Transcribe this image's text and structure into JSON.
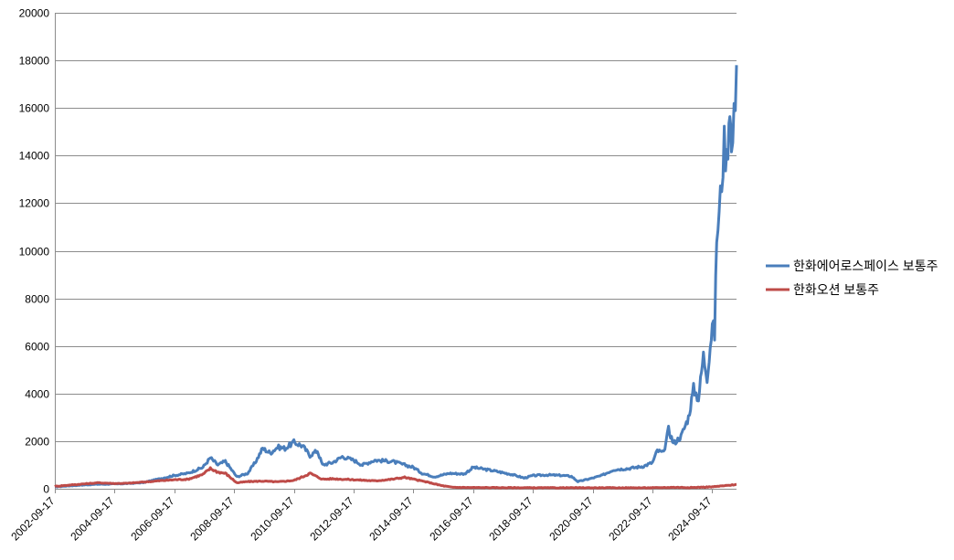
{
  "chart_data": {
    "type": "line",
    "title": "",
    "xlabel": "",
    "ylabel": "",
    "ylim": [
      0,
      20000
    ],
    "yticks": [
      0,
      2000,
      4000,
      6000,
      8000,
      10000,
      12000,
      14000,
      16000,
      18000,
      20000
    ],
    "xlim": [
      "2002-09-17",
      "2025-07-10"
    ],
    "xticks": [
      "2002-09-17",
      "2004-09-17",
      "2006-09-17",
      "2008-09-17",
      "2010-09-17",
      "2012-09-17",
      "2014-09-17",
      "2016-09-17",
      "2018-09-17",
      "2020-09-17",
      "2022-09-17",
      "2024-09-17"
    ],
    "grid": true,
    "legend_position": "right",
    "series": [
      {
        "name": "한화에어로스페이스 보통주",
        "color": "#4a7ebb",
        "points": [
          [
            "2002-09-17",
            80
          ],
          [
            "2003-03-01",
            120
          ],
          [
            "2003-09-01",
            160
          ],
          [
            "2004-03-01",
            190
          ],
          [
            "2004-09-17",
            200
          ],
          [
            "2005-03-01",
            220
          ],
          [
            "2005-09-01",
            260
          ],
          [
            "2006-03-01",
            400
          ],
          [
            "2006-09-17",
            560
          ],
          [
            "2007-03-01",
            650
          ],
          [
            "2007-09-01",
            900
          ],
          [
            "2007-12-01",
            1300
          ],
          [
            "2008-03-01",
            1000
          ],
          [
            "2008-06-01",
            1150
          ],
          [
            "2008-10-20",
            500
          ],
          [
            "2009-03-01",
            650
          ],
          [
            "2009-06-01",
            1100
          ],
          [
            "2009-09-01",
            1700
          ],
          [
            "2009-12-01",
            1500
          ],
          [
            "2010-03-01",
            1750
          ],
          [
            "2010-06-01",
            1700
          ],
          [
            "2010-09-17",
            1950
          ],
          [
            "2011-01-01",
            1800
          ],
          [
            "2011-04-01",
            1400
          ],
          [
            "2011-07-01",
            1600
          ],
          [
            "2011-09-01",
            1000
          ],
          [
            "2012-01-01",
            1100
          ],
          [
            "2012-05-01",
            1350
          ],
          [
            "2012-09-17",
            1200
          ],
          [
            "2013-01-01",
            1000
          ],
          [
            "2013-06-01",
            1200
          ],
          [
            "2014-01-01",
            1150
          ],
          [
            "2014-06-01",
            1000
          ],
          [
            "2014-09-17",
            900
          ],
          [
            "2015-01-01",
            650
          ],
          [
            "2015-06-01",
            500
          ],
          [
            "2015-12-01",
            650
          ],
          [
            "2016-06-01",
            620
          ],
          [
            "2016-09-17",
            900
          ],
          [
            "2017-06-01",
            750
          ],
          [
            "2018-01-01",
            600
          ],
          [
            "2018-06-01",
            450
          ],
          [
            "2018-09-17",
            550
          ],
          [
            "2019-03-01",
            580
          ],
          [
            "2019-09-01",
            560
          ],
          [
            "2020-01-01",
            520
          ],
          [
            "2020-03-20",
            300
          ],
          [
            "2020-09-17",
            450
          ],
          [
            "2021-01-01",
            550
          ],
          [
            "2021-06-01",
            800
          ],
          [
            "2021-12-01",
            850
          ],
          [
            "2022-06-01",
            950
          ],
          [
            "2022-09-17",
            1100
          ],
          [
            "2022-11-15",
            1600
          ],
          [
            "2023-02-01",
            1500
          ],
          [
            "2023-04-01",
            2500
          ],
          [
            "2023-06-01",
            1900
          ],
          [
            "2023-09-01",
            2200
          ],
          [
            "2023-12-01",
            3000
          ],
          [
            "2024-02-01",
            4200
          ],
          [
            "2024-04-01",
            3800
          ],
          [
            "2024-06-01",
            5600
          ],
          [
            "2024-07-15",
            4700
          ],
          [
            "2024-09-17",
            6900
          ],
          [
            "2024-10-15",
            6500
          ],
          [
            "2024-11-10",
            10600
          ],
          [
            "2024-12-10",
            11500
          ],
          [
            "2025-01-10",
            13000
          ],
          [
            "2025-02-10",
            14500
          ],
          [
            "2025-03-15",
            13800
          ],
          [
            "2025-04-20",
            16500
          ],
          [
            "2025-05-10",
            14000
          ],
          [
            "2025-06-10",
            15500
          ],
          [
            "2025-07-10",
            17800
          ]
        ]
      },
      {
        "name": "한화오션 보통주",
        "color": "#be4b48",
        "points": [
          [
            "2002-09-17",
            100
          ],
          [
            "2003-03-01",
            150
          ],
          [
            "2003-09-01",
            200
          ],
          [
            "2004-03-01",
            250
          ],
          [
            "2004-09-17",
            220
          ],
          [
            "2005-03-01",
            230
          ],
          [
            "2005-09-01",
            280
          ],
          [
            "2006-03-01",
            330
          ],
          [
            "2006-09-17",
            380
          ],
          [
            "2007-03-01",
            400
          ],
          [
            "2007-09-01",
            600
          ],
          [
            "2007-12-01",
            850
          ],
          [
            "2008-03-01",
            700
          ],
          [
            "2008-06-01",
            650
          ],
          [
            "2008-10-20",
            250
          ],
          [
            "2009-03-01",
            300
          ],
          [
            "2009-09-01",
            320
          ],
          [
            "2010-03-01",
            290
          ],
          [
            "2010-09-17",
            350
          ],
          [
            "2011-01-01",
            500
          ],
          [
            "2011-04-01",
            650
          ],
          [
            "2011-09-01",
            400
          ],
          [
            "2012-01-01",
            420
          ],
          [
            "2012-09-17",
            380
          ],
          [
            "2013-06-01",
            330
          ],
          [
            "2014-01-01",
            400
          ],
          [
            "2014-06-01",
            480
          ],
          [
            "2014-09-17",
            400
          ],
          [
            "2015-03-01",
            280
          ],
          [
            "2015-09-01",
            130
          ],
          [
            "2016-01-01",
            60
          ],
          [
            "2016-09-17",
            50
          ],
          [
            "2018-09-17",
            40
          ],
          [
            "2020-09-17",
            40
          ],
          [
            "2022-09-17",
            40
          ],
          [
            "2023-06-01",
            60
          ],
          [
            "2024-01-01",
            50
          ],
          [
            "2024-09-17",
            80
          ],
          [
            "2025-03-01",
            130
          ],
          [
            "2025-07-10",
            180
          ]
        ]
      }
    ]
  }
}
